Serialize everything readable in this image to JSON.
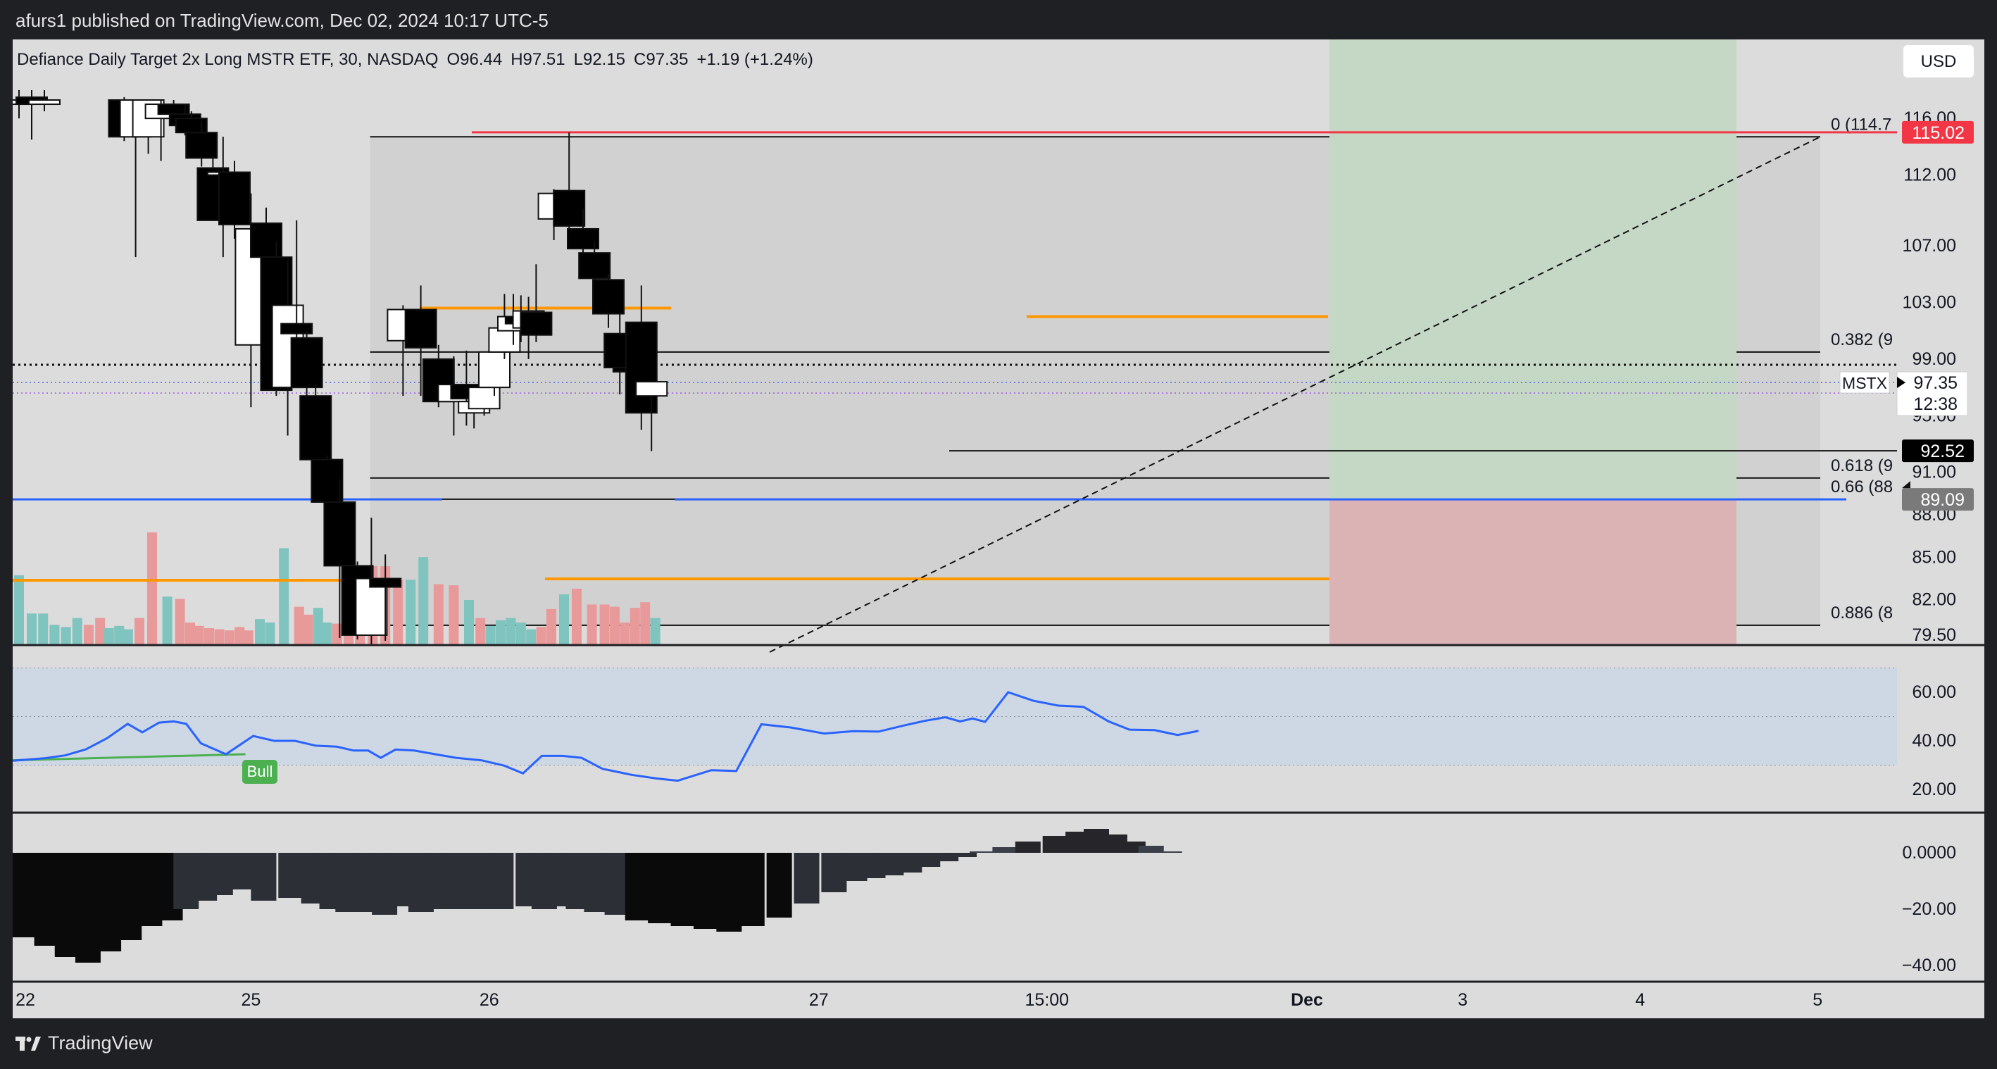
{
  "header": {
    "published": "afurs1 published on TradingView.com, Dec 02, 2024 10:17 UTC-5"
  },
  "footer": {
    "brand": "TradingView"
  },
  "legend": {
    "title": "Defiance Daily Target 2x Long MSTR ETF, 30, NASDAQ",
    "o_label": "O",
    "o_value": "96.44",
    "h_label": "H",
    "h_value": "97.51",
    "l_label": "L",
    "l_value": "92.15",
    "c_label": "C",
    "c_value": "97.35",
    "change": "+1.19 (+1.24%)"
  },
  "currency": "USD",
  "symbol": "MSTX",
  "countdown": "12:38",
  "colors": {
    "up_body": "#ffffff",
    "down_body": "#000000",
    "vol_up": "#7fc4bf",
    "vol_down": "#e8999a",
    "orange": "#ff9800",
    "red": "#f23645",
    "blue": "#2962ff",
    "rsi": "#2962ff",
    "bull": "#4caf50"
  },
  "price_axis": {
    "ticks": [
      {
        "value": 116,
        "label": "116.00"
      },
      {
        "value": 112,
        "label": "112.00"
      },
      {
        "value": 107,
        "label": "107.00"
      },
      {
        "value": 103,
        "label": "103.00"
      },
      {
        "value": 99,
        "label": "99.00"
      },
      {
        "value": 95,
        "label": "95.00"
      },
      {
        "value": 91,
        "label": "91.00"
      },
      {
        "value": 88,
        "label": "88.00"
      },
      {
        "value": 85,
        "label": "85.00"
      },
      {
        "value": 82,
        "label": "82.00"
      },
      {
        "value": 79.5,
        "label": "79.50"
      }
    ],
    "badges": [
      {
        "value": 115.02,
        "label": "115.02",
        "kind": "red"
      },
      {
        "value": 97.35,
        "label": "97.35",
        "kind": "current"
      },
      {
        "value": 92.52,
        "label": "92.52",
        "kind": "black"
      },
      {
        "value": 89.09,
        "label": "89.09",
        "kind": "gray"
      }
    ]
  },
  "time_axis": {
    "labels": [
      {
        "t": 0.5,
        "label": "22"
      },
      {
        "t": 9.4,
        "label": "25"
      },
      {
        "t": 18.8,
        "label": "26"
      },
      {
        "t": 31.8,
        "label": "27"
      },
      {
        "t": 40.8,
        "label": "15:00"
      },
      {
        "t": 49.8,
        "label": "Dec"
      },
      {
        "t": 57.2,
        "label": "3"
      },
      {
        "t": 64.2,
        "label": "4"
      },
      {
        "t": 71.2,
        "label": "5"
      }
    ]
  },
  "fib": {
    "levels": [
      {
        "ratio": "0",
        "label": "0 (114.7",
        "value": 114.7
      },
      {
        "ratio": "0.382",
        "label": "0.382 (9",
        "value": 99.5
      },
      {
        "ratio": "0.618",
        "label": "0.618 (9",
        "value": 90.6
      },
      {
        "ratio": "0.66",
        "label": "0.66 (88",
        "value": 89.1
      },
      {
        "ratio": "0.886",
        "label": "0.886 (8",
        "value": 80.2
      }
    ]
  },
  "levels": {
    "resistance_red": 115.02,
    "support_blue": 89.09,
    "prev_close_dotted": 98.6
  },
  "position": {
    "entry": 89.09,
    "target": 115.02,
    "stop": 79.0
  },
  "rsi_axis": [
    {
      "value": 60,
      "label": "60.00"
    },
    {
      "value": 40,
      "label": "40.00"
    },
    {
      "value": 20,
      "label": "20.00"
    }
  ],
  "rsi_label": "Bull",
  "macd_axis": [
    {
      "value": 0,
      "label": "0.0000"
    },
    {
      "value": -20,
      "label": "−20.00"
    },
    {
      "value": -40,
      "label": "−40.00"
    }
  ],
  "chart_data": {
    "type": "candlestick",
    "title": "Defiance Daily Target 2x Long MSTR ETF, 30, NASDAQ",
    "ylim": [
      78.8,
      117.3
    ],
    "candles": [
      {
        "t": 0.5,
        "o": 117,
        "h": 118,
        "l": 116,
        "c": 117.3
      },
      {
        "t": 1.5,
        "o": 117.5,
        "h": 118,
        "l": 114.5,
        "c": 117
      },
      {
        "t": 2.5,
        "o": 117,
        "h": 118,
        "l": 116.5,
        "c": 117.3
      },
      {
        "t": 8.8,
        "o": 117.3,
        "h": 117.5,
        "l": 114.4,
        "c": 114.7
      },
      {
        "t": 9.7,
        "o": 114.7,
        "h": 117.3,
        "l": 106.2,
        "c": 117.3
      },
      {
        "t": 10.7,
        "o": 114.7,
        "h": 117.3,
        "l": 113.5,
        "c": 117.3
      },
      {
        "t": 11.7,
        "o": 116,
        "h": 117.3,
        "l": 113,
        "c": 117
      },
      {
        "t": 12.7,
        "o": 117,
        "h": 117.3,
        "l": 115.5,
        "c": 116.3
      },
      {
        "t": 13.6,
        "o": 116.3,
        "h": 117,
        "l": 114.8,
        "c": 115.5
      },
      {
        "t": 14.1,
        "o": 116,
        "h": 116.5,
        "l": 113.8,
        "c": 115
      },
      {
        "t": 14.9,
        "o": 115,
        "h": 115.8,
        "l": 112.6,
        "c": 113.2
      },
      {
        "t": 15.8,
        "o": 112.5,
        "h": 113.3,
        "l": 109,
        "c": 108.8
      },
      {
        "t": 16.6,
        "o": 112,
        "h": 114.7,
        "l": 106.2,
        "c": 112.2
      },
      {
        "t": 17.5,
        "o": 112.2,
        "h": 113,
        "l": 107.5,
        "c": 108.5
      },
      {
        "t": 18.8,
        "o": 100,
        "h": 110.7,
        "l": 95.6,
        "c": 108.2
      },
      {
        "t": 20.0,
        "o": 108.6,
        "h": 109.7,
        "l": 104.5,
        "c": 106.2
      },
      {
        "t": 20.8,
        "o": 106.2,
        "h": 107.3,
        "l": 96.4,
        "c": 96.8
      },
      {
        "t": 21.7,
        "o": 97,
        "h": 106,
        "l": 93.6,
        "c": 102.8
      },
      {
        "t": 22.4,
        "o": 101.5,
        "h": 108.8,
        "l": 99.8,
        "c": 100.8
      },
      {
        "t": 23.2,
        "o": 100.5,
        "h": 101,
        "l": 96.4,
        "c": 97
      },
      {
        "t": 23.9,
        "o": 96.4,
        "h": 97.2,
        "l": 91,
        "c": 91.9
      },
      {
        "t": 24.8,
        "o": 91.9,
        "h": 92.2,
        "l": 88.6,
        "c": 88.9
      },
      {
        "t": 25.8,
        "o": 88.9,
        "h": 90.5,
        "l": 79.3,
        "c": 84.4
      },
      {
        "t": 27.2,
        "o": 84.4,
        "h": 84.7,
        "l": 79.2,
        "c": 79.5
      },
      {
        "t": 28.3,
        "o": 79.5,
        "h": 87.8,
        "l": 78.8,
        "c": 83.5
      },
      {
        "t": 29.4,
        "o": 83.5,
        "h": 85.2,
        "l": 79.1,
        "c": 82.9
      },
      {
        "t": 30.8,
        "o": 100.3,
        "h": 102.8,
        "l": 96.4,
        "c": 102.5
      },
      {
        "t": 32.2,
        "o": 102.5,
        "h": 104.2,
        "l": 96.4,
        "c": 99.8
      },
      {
        "t": 33.6,
        "o": 99,
        "h": 100,
        "l": 95.6,
        "c": 96
      },
      {
        "t": 34.8,
        "o": 96,
        "h": 99.2,
        "l": 93.6,
        "c": 97.2
      },
      {
        "t": 35.8,
        "o": 97.2,
        "h": 99.6,
        "l": 94.3,
        "c": 96.2
      },
      {
        "t": 36.4,
        "o": 95.2,
        "h": 96.8,
        "l": 94.1,
        "c": 96
      },
      {
        "t": 37.2,
        "o": 95.5,
        "h": 97.6,
        "l": 95,
        "c": 97
      },
      {
        "t": 38.0,
        "o": 97,
        "h": 100.4,
        "l": 96.4,
        "c": 99.5
      },
      {
        "t": 38.8,
        "o": 99.5,
        "h": 103.6,
        "l": 99,
        "c": 101.2
      },
      {
        "t": 39.5,
        "o": 101,
        "h": 103.6,
        "l": 100,
        "c": 102
      },
      {
        "t": 40.1,
        "o": 102,
        "h": 103.5,
        "l": 100.2,
        "c": 101.5
      },
      {
        "t": 40.7,
        "o": 101.2,
        "h": 103.4,
        "l": 99,
        "c": 102.4
      },
      {
        "t": 41.3,
        "o": 102.3,
        "h": 105.7,
        "l": 100.2,
        "c": 100.7
      },
      {
        "t": 42.7,
        "o": 108.9,
        "h": 111,
        "l": 107.4,
        "c": 110.7
      },
      {
        "t": 43.9,
        "o": 110.9,
        "h": 115,
        "l": 108,
        "c": 108.4
      },
      {
        "t": 45.0,
        "o": 108.2,
        "h": 109.6,
        "l": 106.5,
        "c": 106.8
      },
      {
        "t": 45.9,
        "o": 106.5,
        "h": 107.3,
        "l": 104.3,
        "c": 104.7
      },
      {
        "t": 47.0,
        "o": 104.6,
        "h": 105,
        "l": 101.2,
        "c": 102.2
      },
      {
        "t": 47.9,
        "o": 100.8,
        "h": 102.2,
        "l": 96.5,
        "c": 98.4
      },
      {
        "t": 48.6,
        "o": 98.4,
        "h": 99.4,
        "l": 98,
        "c": 98.1
      },
      {
        "t": 49.6,
        "o": 101.6,
        "h": 104.2,
        "l": 94,
        "c": 95.2
      },
      {
        "t": 50.4,
        "o": 96.4,
        "h": 97.5,
        "l": 92.5,
        "c": 97.4
      }
    ],
    "volume": [
      {
        "t": 0.5,
        "v": 0.62,
        "up": true
      },
      {
        "t": 1.5,
        "v": 0.28,
        "up": true
      },
      {
        "t": 2.4,
        "v": 0.28,
        "up": true
      },
      {
        "t": 3.3,
        "v": 0.18,
        "up": true
      },
      {
        "t": 4.2,
        "v": 0.16,
        "up": true
      },
      {
        "t": 5.1,
        "v": 0.24,
        "up": true
      },
      {
        "t": 6.0,
        "v": 0.18,
        "up": false
      },
      {
        "t": 6.9,
        "v": 0.24,
        "up": false
      },
      {
        "t": 7.6,
        "v": 0.15,
        "up": true
      },
      {
        "t": 8.4,
        "v": 0.17,
        "up": true
      },
      {
        "t": 9.1,
        "v": 0.14,
        "up": true
      },
      {
        "t": 10.0,
        "v": 0.24,
        "up": false
      },
      {
        "t": 11.0,
        "v": 1.0,
        "up": false
      },
      {
        "t": 12.2,
        "v": 0.43,
        "up": true
      },
      {
        "t": 13.2,
        "v": 0.41,
        "up": false
      },
      {
        "t": 14.0,
        "v": 0.2,
        "up": false
      },
      {
        "t": 14.7,
        "v": 0.17,
        "up": false
      },
      {
        "t": 15.5,
        "v": 0.15,
        "up": false
      },
      {
        "t": 16.3,
        "v": 0.14,
        "up": false
      },
      {
        "t": 17.1,
        "v": 0.13,
        "up": false
      },
      {
        "t": 17.9,
        "v": 0.16,
        "up": false
      },
      {
        "t": 18.6,
        "v": 0.13,
        "up": false
      },
      {
        "t": 19.5,
        "v": 0.23,
        "up": true
      },
      {
        "t": 20.3,
        "v": 0.2,
        "up": true
      },
      {
        "t": 21.4,
        "v": 0.86,
        "up": true
      },
      {
        "t": 22.6,
        "v": 0.34,
        "up": false
      },
      {
        "t": 23.3,
        "v": 0.27,
        "up": false
      },
      {
        "t": 24.1,
        "v": 0.33,
        "up": true
      },
      {
        "t": 24.8,
        "v": 0.2,
        "up": true
      },
      {
        "t": 25.6,
        "v": 0.19,
        "up": false
      },
      {
        "t": 26.5,
        "v": 0.2,
        "up": false
      },
      {
        "t": 27.4,
        "v": 0.61,
        "up": false
      },
      {
        "t": 28.4,
        "v": 0.7,
        "up": false
      },
      {
        "t": 29.4,
        "v": 0.7,
        "up": false
      },
      {
        "t": 30.4,
        "v": 0.58,
        "up": false
      },
      {
        "t": 31.4,
        "v": 0.58,
        "up": true
      },
      {
        "t": 32.4,
        "v": 0.78,
        "up": true
      },
      {
        "t": 33.6,
        "v": 0.54,
        "up": false
      },
      {
        "t": 34.8,
        "v": 0.53,
        "up": false
      },
      {
        "t": 36.0,
        "v": 0.4,
        "up": true
      },
      {
        "t": 36.9,
        "v": 0.24,
        "up": false
      },
      {
        "t": 37.7,
        "v": 0.17,
        "up": true
      },
      {
        "t": 38.5,
        "v": 0.22,
        "up": true
      },
      {
        "t": 39.3,
        "v": 0.24,
        "up": true
      },
      {
        "t": 40.1,
        "v": 0.2,
        "up": true
      },
      {
        "t": 40.9,
        "v": 0.14,
        "up": true
      },
      {
        "t": 41.7,
        "v": 0.16,
        "up": false
      },
      {
        "t": 42.5,
        "v": 0.32,
        "up": false
      },
      {
        "t": 43.5,
        "v": 0.45,
        "up": true
      },
      {
        "t": 44.5,
        "v": 0.5,
        "up": false
      },
      {
        "t": 45.7,
        "v": 0.36,
        "up": false
      },
      {
        "t": 46.7,
        "v": 0.36,
        "up": false
      },
      {
        "t": 47.5,
        "v": 0.34,
        "up": false
      },
      {
        "t": 48.3,
        "v": 0.2,
        "up": false
      },
      {
        "t": 49.1,
        "v": 0.33,
        "up": false
      },
      {
        "t": 49.9,
        "v": 0.38,
        "up": false
      },
      {
        "t": 50.7,
        "v": 0.24,
        "up": true
      }
    ],
    "rsi": [
      {
        "t": 0,
        "v": 31.8
      },
      {
        "t": 1.5,
        "v": 32.8
      },
      {
        "t": 2.5,
        "v": 34
      },
      {
        "t": 3.5,
        "v": 36.5
      },
      {
        "t": 4.5,
        "v": 41
      },
      {
        "t": 5.5,
        "v": 47
      },
      {
        "t": 6.2,
        "v": 43.5
      },
      {
        "t": 7,
        "v": 47.5
      },
      {
        "t": 7.7,
        "v": 48
      },
      {
        "t": 8.3,
        "v": 47
      },
      {
        "t": 9,
        "v": 39
      },
      {
        "t": 10.2,
        "v": 34.5
      },
      {
        "t": 11.5,
        "v": 42
      },
      {
        "t": 12.5,
        "v": 40
      },
      {
        "t": 13.5,
        "v": 40
      },
      {
        "t": 14.5,
        "v": 38
      },
      {
        "t": 15.5,
        "v": 37.6
      },
      {
        "t": 16.3,
        "v": 36
      },
      {
        "t": 17,
        "v": 36
      },
      {
        "t": 17.6,
        "v": 33
      },
      {
        "t": 18.3,
        "v": 36.4
      },
      {
        "t": 19.2,
        "v": 36
      },
      {
        "t": 20.2,
        "v": 34.5
      },
      {
        "t": 21.2,
        "v": 33
      },
      {
        "t": 22.4,
        "v": 32
      },
      {
        "t": 23.5,
        "v": 29.8
      },
      {
        "t": 24.4,
        "v": 26.6
      },
      {
        "t": 25.3,
        "v": 33.8
      },
      {
        "t": 26.3,
        "v": 33.8
      },
      {
        "t": 27.2,
        "v": 33
      },
      {
        "t": 28.2,
        "v": 28.5
      },
      {
        "t": 29.6,
        "v": 26
      },
      {
        "t": 30.8,
        "v": 24.5
      },
      {
        "t": 31.8,
        "v": 23.6
      },
      {
        "t": 33.4,
        "v": 27.9
      },
      {
        "t": 34.6,
        "v": 27.6
      },
      {
        "t": 35.8,
        "v": 46.8
      },
      {
        "t": 37.2,
        "v": 45.5
      },
      {
        "t": 38.8,
        "v": 43
      },
      {
        "t": 40.2,
        "v": 44
      },
      {
        "t": 41.4,
        "v": 43.8
      },
      {
        "t": 42.6,
        "v": 46.3
      },
      {
        "t": 43.6,
        "v": 48.2
      },
      {
        "t": 44.6,
        "v": 49.7
      },
      {
        "t": 45.3,
        "v": 48
      },
      {
        "t": 45.9,
        "v": 49.2
      },
      {
        "t": 46.5,
        "v": 47.8
      },
      {
        "t": 47.6,
        "v": 60
      },
      {
        "t": 48.8,
        "v": 56.5
      },
      {
        "t": 50,
        "v": 54.5
      },
      {
        "t": 51.2,
        "v": 54
      },
      {
        "t": 52.4,
        "v": 48
      },
      {
        "t": 53.4,
        "v": 44.6
      },
      {
        "t": 54.6,
        "v": 44.4
      },
      {
        "t": 55.7,
        "v": 42.4
      },
      {
        "t": 56.7,
        "v": 44.1
      }
    ],
    "rsi_divergence": {
      "t1": 0,
      "v1": 32,
      "t2": 10.2,
      "v2": 34.5
    },
    "macd_hist": [
      {
        "t": 0.5,
        "v": -30
      },
      {
        "t": 1.5,
        "v": -33
      },
      {
        "t": 2.4,
        "v": -37
      },
      {
        "t": 3.3,
        "v": -39
      },
      {
        "t": 4.2,
        "v": -35
      },
      {
        "t": 5.1,
        "v": -31
      },
      {
        "t": 6.0,
        "v": -26
      },
      {
        "t": 6.9,
        "v": -24
      },
      {
        "t": 7.6,
        "v": -20
      },
      {
        "t": 8.4,
        "v": -17
      },
      {
        "t": 9.1,
        "v": -15
      },
      {
        "t": 10.0,
        "v": -13
      },
      {
        "t": 11.0,
        "v": -17
      },
      {
        "t": 12.2,
        "v": -16
      },
      {
        "t": 13.2,
        "v": -18
      },
      {
        "t": 14.0,
        "v": -20
      },
      {
        "t": 14.7,
        "v": -21
      },
      {
        "t": 15.5,
        "v": -21
      },
      {
        "t": 16.3,
        "v": -22
      },
      {
        "t": 17.1,
        "v": -19
      },
      {
        "t": 17.9,
        "v": -21
      },
      {
        "t": 18.6,
        "v": -20
      },
      {
        "t": 19.5,
        "v": -20
      },
      {
        "t": 20.3,
        "v": -20
      },
      {
        "t": 21.4,
        "v": -20
      },
      {
        "t": 22.6,
        "v": -19
      },
      {
        "t": 23.3,
        "v": -20
      },
      {
        "t": 24.1,
        "v": -19
      },
      {
        "t": 24.8,
        "v": -20
      },
      {
        "t": 25.6,
        "v": -21
      },
      {
        "t": 26.5,
        "v": -22
      },
      {
        "t": 27.4,
        "v": -24
      },
      {
        "t": 28.4,
        "v": -25
      },
      {
        "t": 29.4,
        "v": -26
      },
      {
        "t": 30.4,
        "v": -27
      },
      {
        "t": 31.4,
        "v": -28
      },
      {
        "t": 32.4,
        "v": -26
      },
      {
        "t": 33.6,
        "v": -23
      },
      {
        "t": 34.8,
        "v": -18
      },
      {
        "t": 36.0,
        "v": -14
      },
      {
        "t": 36.9,
        "v": -10
      },
      {
        "t": 37.7,
        "v": -9
      },
      {
        "t": 38.5,
        "v": -8
      },
      {
        "t": 39.3,
        "v": -7
      },
      {
        "t": 40.1,
        "v": -5
      },
      {
        "t": 40.9,
        "v": -3
      },
      {
        "t": 41.7,
        "v": -1.5
      },
      {
        "t": 42.5,
        "v": 0.5
      },
      {
        "t": 43.5,
        "v": 2
      },
      {
        "t": 44.5,
        "v": 4
      },
      {
        "t": 45.7,
        "v": 6
      },
      {
        "t": 46.7,
        "v": 7.5
      },
      {
        "t": 47.5,
        "v": 8.5
      },
      {
        "t": 48.3,
        "v": 6.5
      },
      {
        "t": 49.1,
        "v": 4
      },
      {
        "t": 49.9,
        "v": 2.5
      },
      {
        "t": 50.7,
        "v": 0.5
      }
    ]
  }
}
